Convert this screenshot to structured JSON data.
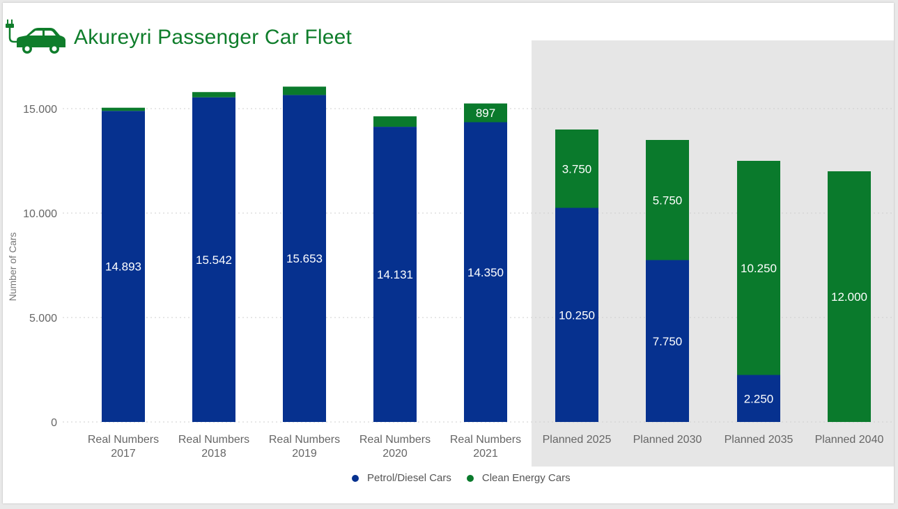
{
  "header": {
    "title": "Akureyri Passenger Car Fleet",
    "logo_icon": "ev-car-plug-icon"
  },
  "colors": {
    "petrol": "#06318f",
    "clean": "#0a7a2c",
    "planned_bg": "#e6e6e6",
    "title": "#0f7d2b"
  },
  "chart_data": {
    "type": "bar",
    "stacked": true,
    "title": "Akureyri Passenger Car Fleet",
    "xlabel": "",
    "ylabel": "Number of Cars",
    "ylim": [
      0,
      17000
    ],
    "yticks": [
      0,
      5000,
      10000,
      15000
    ],
    "ytick_labels": [
      "0",
      "5.000",
      "10.000",
      "15.000"
    ],
    "grid": true,
    "legend_position": "bottom-center",
    "categories": [
      "Real Numbers 2017",
      "Real Numbers 2018",
      "Real Numbers 2019",
      "Real Numbers 2020",
      "Real Numbers 2021",
      "Planned 2025",
      "Planned 2030",
      "Planned 2035",
      "Planned 2040"
    ],
    "category_label_lines": [
      [
        "Real Numbers",
        "2017"
      ],
      [
        "Real Numbers",
        "2018"
      ],
      [
        "Real Numbers",
        "2019"
      ],
      [
        "Real Numbers",
        "2020"
      ],
      [
        "Real Numbers",
        "2021"
      ],
      [
        "Planned 2025"
      ],
      [
        "Planned 2030"
      ],
      [
        "Planned 2035"
      ],
      [
        "Planned 2040"
      ]
    ],
    "planned_region_categories": [
      "Planned 2025",
      "Planned 2030",
      "Planned 2035",
      "Planned 2040"
    ],
    "series": [
      {
        "name": "Petrol/Diesel Cars",
        "color": "#06318f",
        "values": [
          14893,
          15542,
          15653,
          14131,
          14350,
          10250,
          7750,
          2250,
          0
        ],
        "labels": [
          "14.893",
          "15.542",
          "15.653",
          "14.131",
          "14.350",
          "10.250",
          "7.750",
          "2.250",
          ""
        ]
      },
      {
        "name": "Clean Energy Cars",
        "color": "#0a7a2c",
        "values": [
          150,
          250,
          400,
          500,
          897,
          3750,
          5750,
          10250,
          12000
        ],
        "labels": [
          "",
          "",
          "",
          "",
          "897",
          "3.750",
          "5.750",
          "10.250",
          "12.000"
        ]
      }
    ]
  }
}
